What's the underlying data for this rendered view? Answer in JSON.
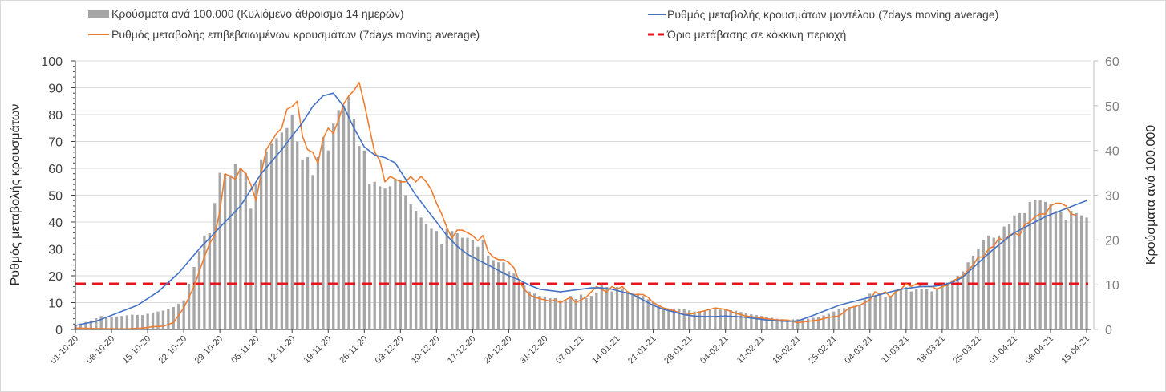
{
  "chart_data": {
    "type": "bar+line",
    "legend": {
      "bars": "Κρούσματα ανά 100.000 (Κυλιόμενο άθροισμα 14 ημερών)",
      "confirmed": "Ρυθμός μεταβολής επιβεβαιωμένων κρουσμάτων (7days moving average)",
      "model": "Ρυθμός μεταβολής κρουσμάτων μοντέλου (7days moving average)",
      "threshold": "Όριο μετάβασης σε κόκκινη περιοχή",
      "placement": "top"
    },
    "ylabel_left": "Ρυθμός μεταβολής κρουσμάτων",
    "ylabel_right": "Κρούσματα ανά 100.000",
    "ylim_left": [
      0,
      100
    ],
    "ylim_right": [
      0,
      60
    ],
    "yticks_left": [
      "0",
      "10",
      "20",
      "30",
      "40",
      "50",
      "60",
      "70",
      "80",
      "90",
      "100"
    ],
    "yticks_right": [
      "0",
      "10",
      "20",
      "30",
      "40",
      "50",
      "60"
    ],
    "x_start": "01-10-20",
    "x_days": 197,
    "xticks": [
      {
        "day": 0,
        "label": "01-10-20"
      },
      {
        "day": 7,
        "label": "08-10-20"
      },
      {
        "day": 14,
        "label": "15-10-20"
      },
      {
        "day": 21,
        "label": "22-10-20"
      },
      {
        "day": 28,
        "label": "29-10-20"
      },
      {
        "day": 35,
        "label": "05-11-20"
      },
      {
        "day": 42,
        "label": "12-11-20"
      },
      {
        "day": 49,
        "label": "19-11-20"
      },
      {
        "day": 56,
        "label": "26-11-20"
      },
      {
        "day": 63,
        "label": "03-12-20"
      },
      {
        "day": 70,
        "label": "10-12-20"
      },
      {
        "day": 77,
        "label": "17-12-20"
      },
      {
        "day": 84,
        "label": "24-12-20"
      },
      {
        "day": 91,
        "label": "31-12-20"
      },
      {
        "day": 98,
        "label": "07-01-21"
      },
      {
        "day": 105,
        "label": "14-01-21"
      },
      {
        "day": 112,
        "label": "21-01-21"
      },
      {
        "day": 119,
        "label": "28-01-21"
      },
      {
        "day": 126,
        "label": "04-02-21"
      },
      {
        "day": 133,
        "label": "11-02-21"
      },
      {
        "day": 140,
        "label": "18-02-21"
      },
      {
        "day": 147,
        "label": "25-02-21"
      },
      {
        "day": 154,
        "label": "04-03-21"
      },
      {
        "day": 161,
        "label": "11-03-21"
      },
      {
        "day": 168,
        "label": "18-03-21"
      },
      {
        "day": 175,
        "label": "25-03-21"
      },
      {
        "day": 182,
        "label": "01-04-21"
      },
      {
        "day": 189,
        "label": "08-04-21"
      },
      {
        "day": 196,
        "label": "15-04-21"
      }
    ],
    "bars_keypoints": [
      [
        0,
        1
      ],
      [
        3,
        2
      ],
      [
        5,
        3
      ],
      [
        7,
        2.8
      ],
      [
        9,
        3
      ],
      [
        11,
        3.3
      ],
      [
        13,
        3.2
      ],
      [
        15,
        3.8
      ],
      [
        17,
        4.2
      ],
      [
        19,
        5
      ],
      [
        21,
        6.5
      ],
      [
        23,
        14
      ],
      [
        25,
        21
      ],
      [
        26,
        21.5
      ],
      [
        28,
        35
      ],
      [
        30,
        34.5
      ],
      [
        31,
        37
      ],
      [
        32,
        36
      ],
      [
        33,
        35
      ],
      [
        34,
        27
      ],
      [
        36,
        38
      ],
      [
        38,
        41.5
      ],
      [
        40,
        44
      ],
      [
        41,
        45
      ],
      [
        42,
        48
      ],
      [
        43,
        42
      ],
      [
        44,
        38
      ],
      [
        45,
        38.5
      ],
      [
        46,
        34.5
      ],
      [
        47,
        38.5
      ],
      [
        48,
        43
      ],
      [
        49,
        40
      ],
      [
        50,
        46
      ],
      [
        51,
        49
      ],
      [
        52,
        50
      ],
      [
        53,
        52
      ],
      [
        54,
        47
      ],
      [
        55,
        41
      ],
      [
        56,
        40
      ],
      [
        57,
        32.5
      ],
      [
        58,
        33
      ],
      [
        59,
        32
      ],
      [
        60,
        31.5
      ],
      [
        61,
        32
      ],
      [
        62,
        33.5
      ],
      [
        63,
        33.5
      ],
      [
        64,
        30
      ],
      [
        65,
        28
      ],
      [
        66,
        26.5
      ],
      [
        67,
        25
      ],
      [
        68,
        23.5
      ],
      [
        69,
        22.5
      ],
      [
        70,
        22
      ],
      [
        71,
        19
      ],
      [
        72,
        22.5
      ],
      [
        73,
        22
      ],
      [
        74,
        21.5
      ],
      [
        75,
        20.5
      ],
      [
        76,
        20.5
      ],
      [
        77,
        20
      ],
      [
        78,
        18.5
      ],
      [
        79,
        20
      ],
      [
        80,
        16.5
      ],
      [
        81,
        15.5
      ],
      [
        82,
        15
      ],
      [
        83,
        15
      ],
      [
        84,
        13
      ],
      [
        85,
        12.5
      ],
      [
        86,
        11
      ],
      [
        87,
        10
      ],
      [
        88,
        8.5
      ],
      [
        89,
        8
      ],
      [
        90,
        7.5
      ],
      [
        91,
        7.3
      ],
      [
        92,
        7
      ],
      [
        93,
        7
      ],
      [
        94,
        6.5
      ],
      [
        95,
        6.5
      ],
      [
        96,
        7.5
      ],
      [
        97,
        6.8
      ],
      [
        98,
        7.8
      ],
      [
        99,
        7
      ],
      [
        100,
        7.5
      ],
      [
        101,
        8.2
      ],
      [
        102,
        10
      ],
      [
        103,
        9.5
      ],
      [
        104,
        8.5
      ],
      [
        105,
        9.5
      ],
      [
        106,
        9.2
      ],
      [
        107,
        8.5
      ],
      [
        108,
        8
      ],
      [
        109,
        8
      ],
      [
        110,
        7.5
      ],
      [
        112,
        6
      ],
      [
        114,
        4.8
      ],
      [
        116,
        4.6
      ],
      [
        118,
        4.5
      ],
      [
        120,
        4
      ],
      [
        122,
        4.2
      ],
      [
        124,
        4.5
      ],
      [
        126,
        4.4
      ],
      [
        128,
        4.2
      ],
      [
        130,
        3.6
      ],
      [
        132,
        3.2
      ],
      [
        134,
        2.8
      ],
      [
        136,
        2.4
      ],
      [
        138,
        2.2
      ],
      [
        140,
        2.3
      ],
      [
        142,
        2.4
      ],
      [
        144,
        2.8
      ],
      [
        146,
        3.5
      ],
      [
        148,
        4.5
      ],
      [
        150,
        5
      ],
      [
        152,
        5.5
      ],
      [
        154,
        8
      ],
      [
        155,
        7.5
      ],
      [
        156,
        8
      ],
      [
        157,
        7.2
      ],
      [
        158,
        7.5
      ],
      [
        159,
        8.5
      ],
      [
        160,
        9
      ],
      [
        161,
        9.5
      ],
      [
        162,
        8.5
      ],
      [
        163,
        9
      ],
      [
        164,
        9
      ],
      [
        165,
        9
      ],
      [
        166,
        8.5
      ],
      [
        167,
        9
      ],
      [
        168,
        9.8
      ],
      [
        169,
        10.5
      ],
      [
        170,
        11
      ],
      [
        171,
        12
      ],
      [
        172,
        13
      ],
      [
        173,
        15
      ],
      [
        174,
        16.5
      ],
      [
        175,
        18
      ],
      [
        176,
        20
      ],
      [
        177,
        21
      ],
      [
        178,
        20.5
      ],
      [
        179,
        21
      ],
      [
        180,
        23
      ],
      [
        181,
        23.5
      ],
      [
        182,
        25.5
      ],
      [
        183,
        26
      ],
      [
        184,
        26
      ],
      [
        185,
        28.5
      ],
      [
        186,
        29
      ],
      [
        187,
        29
      ],
      [
        188,
        28.5
      ],
      [
        189,
        28
      ],
      [
        190,
        26.5
      ],
      [
        191,
        26.2
      ],
      [
        192,
        24.5
      ],
      [
        193,
        26.5
      ],
      [
        194,
        26
      ],
      [
        195,
        25.5
      ],
      [
        196,
        25
      ]
    ],
    "confirmed_keypoints": [
      [
        0,
        0.5
      ],
      [
        5,
        0.3
      ],
      [
        10,
        0.2
      ],
      [
        13,
        0.5
      ],
      [
        15,
        1
      ],
      [
        17,
        1.2
      ],
      [
        19,
        2.5
      ],
      [
        21,
        8
      ],
      [
        23,
        16
      ],
      [
        25,
        27
      ],
      [
        26,
        32
      ],
      [
        27,
        35
      ],
      [
        28,
        44
      ],
      [
        29,
        58
      ],
      [
        30,
        57
      ],
      [
        31,
        56
      ],
      [
        32,
        60
      ],
      [
        33,
        58
      ],
      [
        34,
        54
      ],
      [
        35,
        48
      ],
      [
        36,
        58
      ],
      [
        37,
        67
      ],
      [
        38,
        70
      ],
      [
        39,
        73
      ],
      [
        40,
        75
      ],
      [
        41,
        82
      ],
      [
        42,
        83
      ],
      [
        43,
        85
      ],
      [
        44,
        72
      ],
      [
        45,
        67
      ],
      [
        46,
        66
      ],
      [
        47,
        62
      ],
      [
        48,
        71
      ],
      [
        49,
        75
      ],
      [
        50,
        73
      ],
      [
        51,
        78
      ],
      [
        52,
        84
      ],
      [
        53,
        87
      ],
      [
        54,
        89
      ],
      [
        55,
        92
      ],
      [
        56,
        84
      ],
      [
        57,
        75
      ],
      [
        58,
        66
      ],
      [
        59,
        63
      ],
      [
        60,
        55
      ],
      [
        61,
        57
      ],
      [
        62,
        56
      ],
      [
        63,
        55
      ],
      [
        64,
        55
      ],
      [
        65,
        57
      ],
      [
        66,
        55
      ],
      [
        67,
        57
      ],
      [
        68,
        55
      ],
      [
        69,
        52
      ],
      [
        70,
        47
      ],
      [
        71,
        43
      ],
      [
        72,
        38
      ],
      [
        73,
        34
      ],
      [
        74,
        37
      ],
      [
        75,
        37
      ],
      [
        76,
        36
      ],
      [
        77,
        35
      ],
      [
        78,
        33
      ],
      [
        79,
        35
      ],
      [
        80,
        29
      ],
      [
        81,
        27
      ],
      [
        82,
        26
      ],
      [
        83,
        26
      ],
      [
        84,
        25
      ],
      [
        85,
        23
      ],
      [
        86,
        18
      ],
      [
        87,
        15
      ],
      [
        88,
        13
      ],
      [
        89,
        12
      ],
      [
        90,
        11.5
      ],
      [
        91,
        11
      ],
      [
        92,
        10.5
      ],
      [
        93,
        11
      ],
      [
        94,
        10
      ],
      [
        95,
        11
      ],
      [
        96,
        12
      ],
      [
        97,
        10
      ],
      [
        98,
        11
      ],
      [
        99,
        12
      ],
      [
        100,
        14
      ],
      [
        101,
        16
      ],
      [
        102,
        15
      ],
      [
        103,
        14
      ],
      [
        104,
        16
      ],
      [
        105,
        15
      ],
      [
        106,
        16
      ],
      [
        107,
        14
      ],
      [
        108,
        13
      ],
      [
        109,
        13
      ],
      [
        110,
        13
      ],
      [
        111,
        12
      ],
      [
        112,
        10
      ],
      [
        114,
        8
      ],
      [
        116,
        7
      ],
      [
        118,
        5.5
      ],
      [
        120,
        6
      ],
      [
        122,
        7
      ],
      [
        124,
        8
      ],
      [
        126,
        7.5
      ],
      [
        128,
        6
      ],
      [
        130,
        5
      ],
      [
        132,
        4.5
      ],
      [
        134,
        4
      ],
      [
        136,
        3.5
      ],
      [
        138,
        3.5
      ],
      [
        140,
        2.5
      ],
      [
        142,
        3
      ],
      [
        144,
        3.5
      ],
      [
        146,
        4.5
      ],
      [
        148,
        5
      ],
      [
        150,
        8
      ],
      [
        152,
        9
      ],
      [
        154,
        11
      ],
      [
        155,
        14
      ],
      [
        156,
        13
      ],
      [
        157,
        14
      ],
      [
        158,
        12
      ],
      [
        159,
        14
      ],
      [
        160,
        15
      ],
      [
        161,
        17
      ],
      [
        162,
        16
      ],
      [
        163,
        17
      ],
      [
        164,
        16
      ],
      [
        165,
        16
      ],
      [
        166,
        16
      ],
      [
        167,
        15
      ],
      [
        168,
        16
      ],
      [
        169,
        16.5
      ],
      [
        170,
        18
      ],
      [
        171,
        19
      ],
      [
        172,
        20
      ],
      [
        173,
        22
      ],
      [
        174,
        24
      ],
      [
        175,
        27
      ],
      [
        176,
        27
      ],
      [
        177,
        30
      ],
      [
        178,
        31
      ],
      [
        179,
        34
      ],
      [
        180,
        33
      ],
      [
        181,
        35
      ],
      [
        182,
        36
      ],
      [
        183,
        35
      ],
      [
        184,
        39
      ],
      [
        185,
        40
      ],
      [
        186,
        42
      ],
      [
        187,
        43
      ],
      [
        188,
        43
      ],
      [
        189,
        46
      ],
      [
        190,
        47
      ],
      [
        191,
        47
      ],
      [
        192,
        46
      ],
      [
        193,
        43
      ],
      [
        194,
        42.5
      ]
    ],
    "model_keypoints": [
      [
        0,
        1.5
      ],
      [
        4,
        3
      ],
      [
        8,
        6
      ],
      [
        12,
        9
      ],
      [
        16,
        14
      ],
      [
        20,
        21
      ],
      [
        24,
        30
      ],
      [
        28,
        38
      ],
      [
        32,
        46
      ],
      [
        36,
        58
      ],
      [
        40,
        67
      ],
      [
        44,
        77
      ],
      [
        46,
        83
      ],
      [
        48,
        87
      ],
      [
        50,
        88
      ],
      [
        52,
        83
      ],
      [
        54,
        75
      ],
      [
        56,
        68
      ],
      [
        58,
        65
      ],
      [
        60,
        64
      ],
      [
        62,
        62
      ],
      [
        64,
        56
      ],
      [
        66,
        50
      ],
      [
        68,
        45
      ],
      [
        70,
        40
      ],
      [
        72,
        35
      ],
      [
        74,
        31
      ],
      [
        76,
        28
      ],
      [
        78,
        26
      ],
      [
        80,
        24
      ],
      [
        82,
        22
      ],
      [
        84,
        20
      ],
      [
        86,
        18.5
      ],
      [
        88,
        16.5
      ],
      [
        90,
        15
      ],
      [
        92,
        14.5
      ],
      [
        94,
        14
      ],
      [
        96,
        14.5
      ],
      [
        98,
        15
      ],
      [
        100,
        15.5
      ],
      [
        102,
        15.5
      ],
      [
        104,
        15
      ],
      [
        106,
        14
      ],
      [
        108,
        13
      ],
      [
        110,
        11
      ],
      [
        112,
        9
      ],
      [
        114,
        7.5
      ],
      [
        116,
        6.5
      ],
      [
        118,
        5.5
      ],
      [
        120,
        5
      ],
      [
        122,
        4.8
      ],
      [
        124,
        4.8
      ],
      [
        126,
        5
      ],
      [
        128,
        4.8
      ],
      [
        130,
        4.5
      ],
      [
        132,
        4
      ],
      [
        134,
        3.5
      ],
      [
        136,
        3.2
      ],
      [
        138,
        3
      ],
      [
        140,
        3.2
      ],
      [
        142,
        4.5
      ],
      [
        144,
        6
      ],
      [
        146,
        7.5
      ],
      [
        148,
        9
      ],
      [
        150,
        10
      ],
      [
        152,
        11
      ],
      [
        154,
        12
      ],
      [
        156,
        13
      ],
      [
        158,
        14
      ],
      [
        160,
        15
      ],
      [
        162,
        15.5
      ],
      [
        164,
        16
      ],
      [
        166,
        16
      ],
      [
        168,
        16.5
      ],
      [
        170,
        17.5
      ],
      [
        172,
        19.5
      ],
      [
        174,
        23
      ],
      [
        176,
        26.5
      ],
      [
        178,
        30
      ],
      [
        180,
        33
      ],
      [
        182,
        36
      ],
      [
        184,
        38
      ],
      [
        186,
        40
      ],
      [
        188,
        42
      ],
      [
        190,
        43.5
      ],
      [
        192,
        45
      ],
      [
        194,
        46.5
      ],
      [
        196,
        48
      ]
    ],
    "threshold_value": 17,
    "colors": {
      "bars": "#a6a6a6",
      "confirmed": "#ed7d31",
      "model": "#4472c4",
      "threshold": "#e8141b",
      "grid": "#d9d9d9"
    }
  }
}
